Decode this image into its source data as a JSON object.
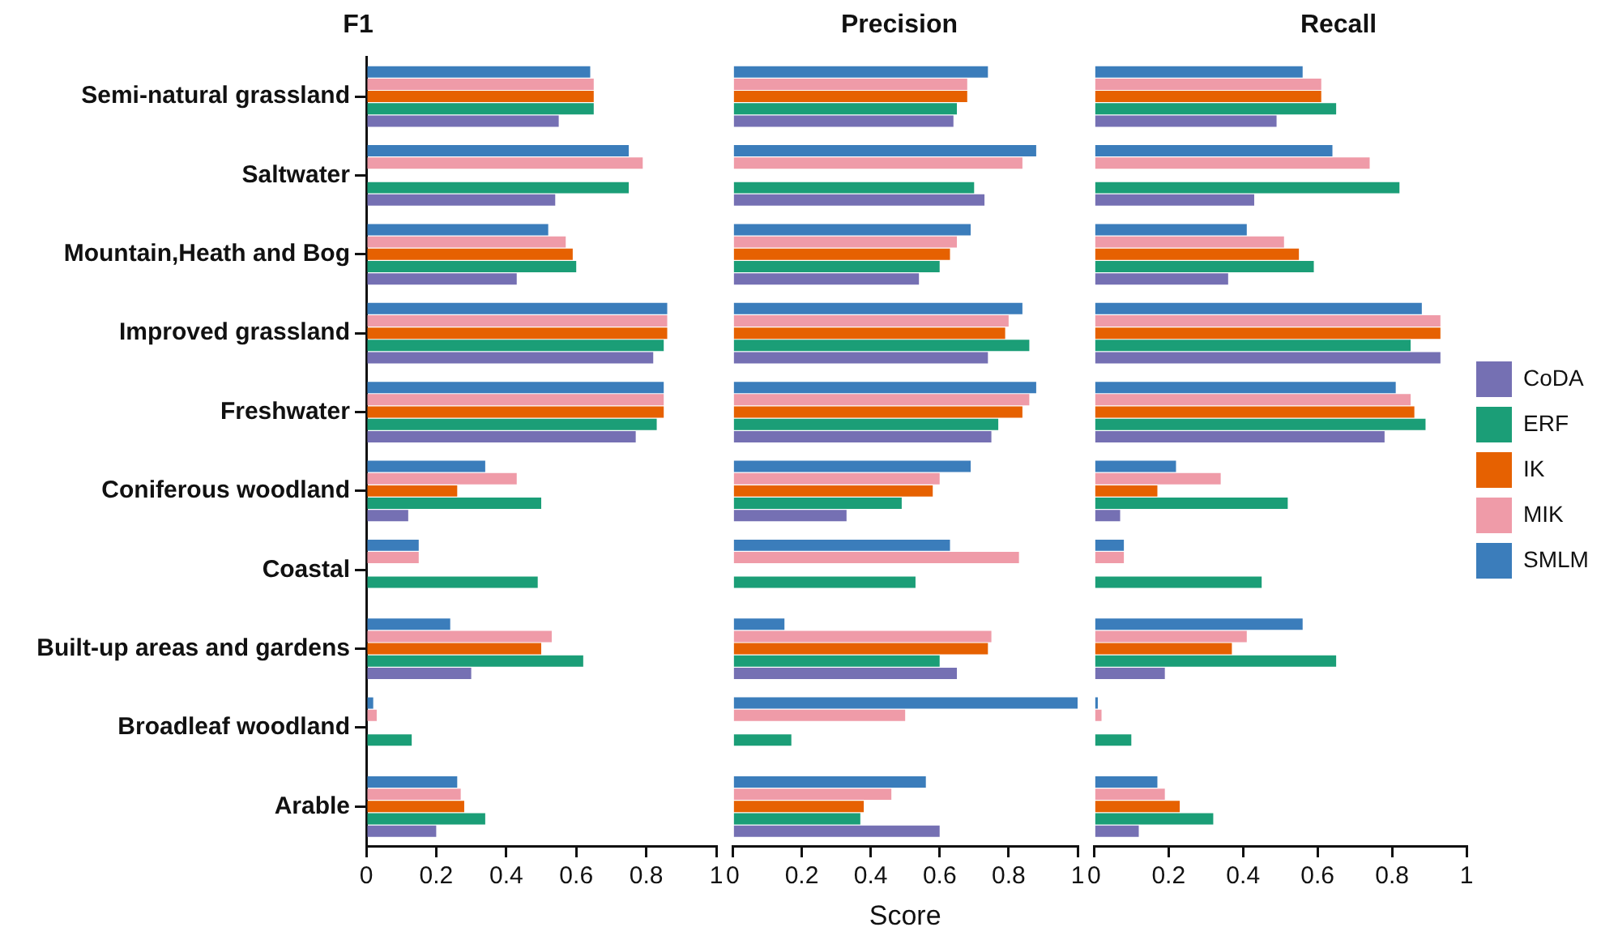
{
  "chart_data": [
    {
      "type": "bar",
      "orientation": "horizontal",
      "title": "F1",
      "categories": [
        "Semi-natural grassland",
        "Saltwater",
        "Mountain,Heath and Bog",
        "Improved grassland",
        "Freshwater",
        "Coniferous woodland",
        "Coastal",
        "Built-up areas and gardens",
        "Broadleaf woodland",
        "Arable"
      ],
      "xlim": [
        0,
        1
      ],
      "xticks": [
        0,
        0.2,
        0.4,
        0.6,
        0.8,
        1
      ],
      "grid": false,
      "legend": false,
      "series": [
        {
          "color": "#7570b3",
          "values": [
            0.55,
            0.54,
            0.43,
            0.82,
            0.77,
            0.12,
            null,
            0.3,
            null,
            0.2
          ]
        },
        {
          "color": "#1b9e77",
          "values": [
            0.65,
            0.75,
            0.6,
            0.85,
            0.83,
            0.5,
            0.49,
            0.62,
            0.13,
            0.34
          ]
        },
        {
          "color": "#e66101",
          "values": [
            0.65,
            null,
            0.59,
            0.86,
            0.85,
            0.26,
            null,
            0.5,
            null,
            0.28
          ]
        },
        {
          "color": "#ef9ba8",
          "values": [
            0.65,
            0.79,
            0.57,
            0.86,
            0.85,
            0.43,
            0.15,
            0.53,
            0.03,
            0.27
          ]
        },
        {
          "color": "#3b7dbb",
          "values": [
            0.64,
            0.75,
            0.52,
            0.86,
            0.85,
            0.34,
            0.15,
            0.24,
            0.02,
            0.26
          ]
        }
      ]
    },
    {
      "type": "bar",
      "orientation": "horizontal",
      "title": "Precision",
      "xlabel": "Score",
      "categories": [
        null,
        null,
        null,
        null,
        null,
        null,
        null,
        null,
        null,
        null
      ],
      "xlim": [
        0,
        1
      ],
      "xticks": [
        0,
        0.2,
        0.4,
        0.6,
        0.8,
        1
      ],
      "grid": false,
      "legend": false,
      "tick_labels": "x",
      "series": [
        {
          "color": "#7570b3",
          "values": [
            0.64,
            0.73,
            0.54,
            0.74,
            0.75,
            0.33,
            null,
            0.65,
            null,
            0.6
          ]
        },
        {
          "color": "#1b9e77",
          "values": [
            0.65,
            0.7,
            0.6,
            0.86,
            0.77,
            0.49,
            0.53,
            0.6,
            0.17,
            0.37
          ]
        },
        {
          "color": "#e66101",
          "values": [
            0.68,
            null,
            0.63,
            0.79,
            0.84,
            0.58,
            null,
            0.74,
            null,
            0.38
          ]
        },
        {
          "color": "#ef9ba8",
          "values": [
            0.68,
            0.84,
            0.65,
            0.8,
            0.86,
            0.6,
            0.83,
            0.75,
            0.5,
            0.46
          ]
        },
        {
          "color": "#3b7dbb",
          "values": [
            0.74,
            0.88,
            0.69,
            0.84,
            0.88,
            0.69,
            0.63,
            0.15,
            1,
            0.56
          ]
        }
      ]
    },
    {
      "type": "bar",
      "orientation": "horizontal",
      "title": "Recall",
      "categories": [
        null,
        null,
        null,
        null,
        null,
        null,
        null,
        null,
        null,
        null
      ],
      "xlim": [
        0,
        1
      ],
      "xticks": [
        0,
        0.2,
        0.4,
        0.6,
        0.8,
        1
      ],
      "grid": false,
      "legend": "right",
      "tick_labels": "x",
      "series": [
        {
          "name": "CoDA",
          "color": "#7570b3",
          "values": [
            0.49,
            0.43,
            0.36,
            0.93,
            0.78,
            0.07,
            null,
            0.19,
            null,
            0.12
          ]
        },
        {
          "name": "ERF",
          "color": "#1b9e77",
          "values": [
            0.65,
            0.82,
            0.59,
            0.85,
            0.89,
            0.52,
            0.45,
            0.65,
            0.1,
            0.32
          ]
        },
        {
          "name": "IK",
          "color": "#e66101",
          "values": [
            0.61,
            null,
            0.55,
            0.93,
            0.86,
            0.17,
            null,
            0.37,
            null,
            0.23
          ]
        },
        {
          "name": "MIK",
          "color": "#ef9ba8",
          "values": [
            0.61,
            0.74,
            0.51,
            0.93,
            0.85,
            0.34,
            0.08,
            0.41,
            0.02,
            0.19
          ]
        },
        {
          "name": "SMLM",
          "color": "#3b7dbb",
          "values": [
            0.56,
            0.64,
            0.41,
            0.88,
            0.81,
            0.22,
            0.08,
            0.56,
            0.01,
            0.17
          ]
        }
      ]
    }
  ]
}
